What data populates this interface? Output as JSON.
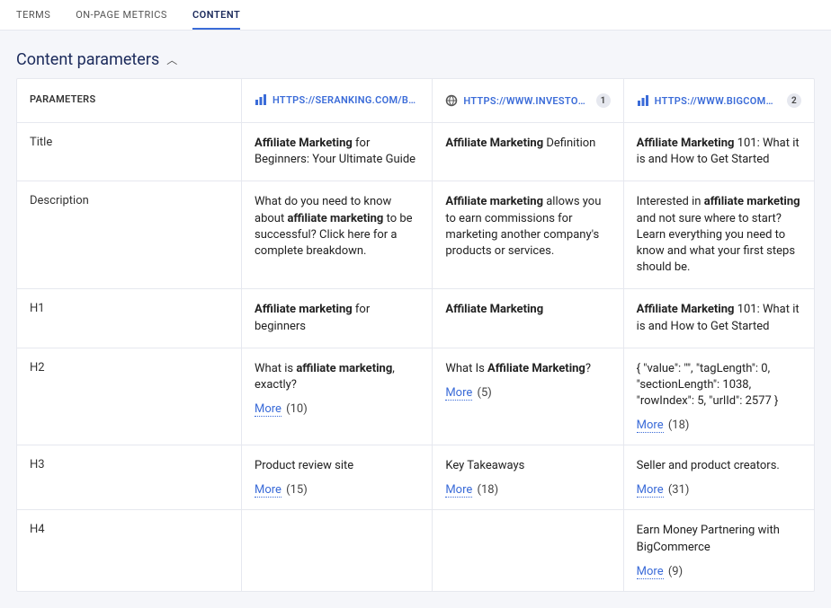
{
  "tabs": {
    "items": [
      {
        "label": "TERMS",
        "active": false
      },
      {
        "label": "ON-PAGE METRICS",
        "active": false
      },
      {
        "label": "CONTENT",
        "active": true
      }
    ]
  },
  "section": {
    "title": "Content parameters"
  },
  "columns": {
    "param_header": "PARAMETERS",
    "sites": [
      {
        "url": "HTTPS://SERANKING.COM/BLOG/A...",
        "icon": "bar-chart",
        "icon_color": "#3a6bd8",
        "rank": null
      },
      {
        "url": "HTTPS://WWW.INVESTOPEDIA.CO...",
        "icon": "globe",
        "icon_color": "#555555",
        "rank": "1"
      },
      {
        "url": "HTTPS://WWW.BIGCOMMERCE.CO...",
        "icon": "bar-chart",
        "icon_color": "#3a6bd8",
        "rank": "2"
      }
    ]
  },
  "rows": [
    {
      "param": "Title",
      "cells": [
        {
          "html": "<b>Affiliate Marketing</b> for Beginners: Your Ultimate Guide",
          "more": null
        },
        {
          "html": "<b>Affiliate Marketing</b> Definition",
          "more": null
        },
        {
          "html": "<b>Affiliate Marketing</b> 101: What it is and How to Get Started",
          "more": null
        }
      ]
    },
    {
      "param": "Description",
      "cells": [
        {
          "html": "What do you need to know about <b>affiliate marketing</b> to be successful? Click here for a complete breakdown.",
          "more": null
        },
        {
          "html": "<b>Affiliate marketing</b> allows you to earn commissions for marketing another company's products or services.",
          "more": null
        },
        {
          "html": "Interested in <b>affiliate marketing</b> and not sure where to start? Learn everything you need to know and what your first steps should be.",
          "more": null
        }
      ]
    },
    {
      "param": "H1",
      "cells": [
        {
          "html": "<b>Affiliate marketing</b> for beginners",
          "more": null
        },
        {
          "html": "<b>Affiliate Marketing</b>",
          "more": null
        },
        {
          "html": "<b>Affiliate Marketing</b> 101: What it is and How to Get Started",
          "more": null
        }
      ]
    },
    {
      "param": "H2",
      "cells": [
        {
          "html": "What is <b>affiliate marketing</b>, exactly?",
          "more": {
            "label": "More",
            "count": "(10)"
          }
        },
        {
          "html": "What Is <b>Affiliate Marketing</b>?",
          "more": {
            "label": "More",
            "count": "(5)"
          }
        },
        {
          "html": "{ \"value\": \"\", \"tagLength\": 0, \"sectionLength\": 1038, \"rowIndex\": 5, \"urlId\": 2577 }",
          "more": {
            "label": "More",
            "count": "(18)"
          }
        }
      ]
    },
    {
      "param": "H3",
      "cells": [
        {
          "html": "Product review site",
          "more": {
            "label": "More",
            "count": "(15)"
          }
        },
        {
          "html": "Key Takeaways",
          "more": {
            "label": "More",
            "count": "(18)"
          }
        },
        {
          "html": "Seller and product creators.",
          "more": {
            "label": "More",
            "count": "(31)"
          }
        }
      ]
    },
    {
      "param": "H4",
      "cells": [
        {
          "html": "",
          "more": null
        },
        {
          "html": "",
          "more": null
        },
        {
          "html": "Earn Money Partnering with BigCommerce",
          "more": {
            "label": "More",
            "count": "(9)"
          }
        }
      ]
    }
  ]
}
